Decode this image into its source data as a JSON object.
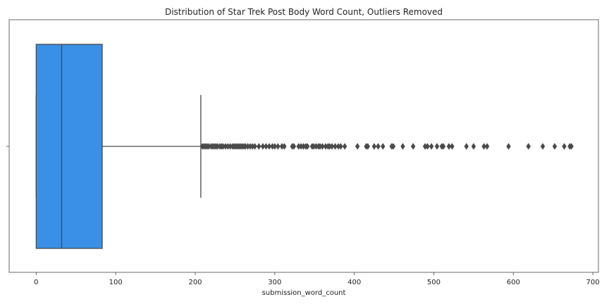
{
  "chart_data": {
    "type": "box",
    "title": "Distribution of Star Trek Post Body Word Count, Outliers Removed",
    "xlabel": "submission_word_count",
    "ylabel": "",
    "xlim": [
      -34,
      707
    ],
    "xticks": [
      0,
      100,
      200,
      300,
      400,
      500,
      600,
      700
    ],
    "grid": false,
    "orientation": "horizontal",
    "box_color": "#3a8fe6",
    "line_color": "#4a4a4a",
    "box": {
      "whisker_low": 0,
      "q1": 0,
      "median": 32,
      "q3": 83,
      "whisker_high": 207
    },
    "outliers": [
      209,
      211,
      213,
      215,
      217,
      220,
      222,
      224,
      226,
      228,
      231,
      233,
      235,
      238,
      241,
      244,
      247,
      249,
      251,
      253,
      255,
      257,
      259,
      261,
      263,
      266,
      269,
      272,
      275,
      280,
      285,
      289,
      293,
      297,
      300,
      304,
      309,
      312,
      322,
      324,
      330,
      333,
      336,
      339,
      341,
      347,
      349,
      352,
      355,
      357,
      360,
      364,
      367,
      369,
      372,
      376,
      380,
      383,
      388,
      404,
      415,
      417,
      425,
      430,
      436,
      447,
      449,
      461,
      474,
      489,
      492,
      497,
      504,
      510,
      512,
      519,
      523,
      541,
      550,
      563,
      567,
      594,
      619,
      637,
      652,
      664,
      671,
      673
    ]
  }
}
